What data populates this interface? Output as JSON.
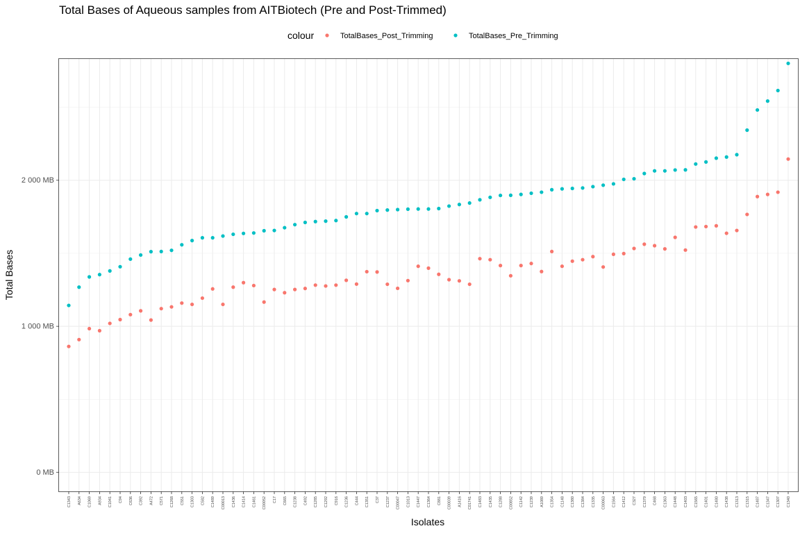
{
  "chart_data": {
    "type": "scatter",
    "title": "Total Bases of Aqueous samples from AITBiotech (Pre and Post-Trimmed)",
    "xlabel": "Isolates",
    "ylabel": "Total Bases",
    "ylim": [
      -130,
      2830
    ],
    "y_ticks": [
      0,
      1000,
      2000
    ],
    "y_tick_labels": [
      "0 MB",
      "1 000 MB",
      "2 000 MB"
    ],
    "grid": true,
    "legend": {
      "title": "colour",
      "position": "top"
    },
    "colors": {
      "post": "#F8766D",
      "pre": "#00BFC4"
    },
    "categories": [
      "C1343",
      "A634",
      "C1069",
      "A934",
      "C1041",
      "C94",
      "C636",
      "C392",
      "A472",
      "C571",
      "C1268",
      "C551",
      "C1303",
      "C582",
      "C1489",
      "C00013",
      "C1436",
      "C1414",
      "C1461",
      "C00052",
      "C17",
      "C665",
      "C1238",
      "C492",
      "C1285",
      "C1292",
      "C916",
      "C1236",
      "C444",
      "C1351",
      "C37",
      "C1237",
      "C00047",
      "C1013",
      "C1447",
      "C1364",
      "C881",
      "C00039",
      "A1416",
      "C01741",
      "C1483",
      "C1435",
      "C1288",
      "C00852",
      "C1142",
      "C1239",
      "A1089",
      "C1354",
      "C1148",
      "C1380",
      "C1384",
      "C1335",
      "C00063",
      "C1564",
      "C1412",
      "C327",
      "C1379",
      "C468",
      "C1363",
      "C1448",
      "C1403",
      "C1565",
      "C1401",
      "C1480",
      "C1438",
      "C1313",
      "C1315",
      "C1487",
      "C1347",
      "C1307",
      "C1340"
    ],
    "series": [
      {
        "name": "TotalBases_Post_Trimming",
        "values": [
          862,
          909,
          984,
          970,
          1020,
          1046,
          1080,
          1106,
          1043,
          1121,
          1133,
          1159,
          1150,
          1193,
          1256,
          1150,
          1268,
          1299,
          1279,
          1166,
          1252,
          1230,
          1252,
          1259,
          1282,
          1276,
          1282,
          1315,
          1289,
          1374,
          1372,
          1288,
          1260,
          1313,
          1411,
          1398,
          1356,
          1319,
          1311,
          1288,
          1463,
          1456,
          1416,
          1346,
          1416,
          1430,
          1375,
          1512,
          1411,
          1446,
          1456,
          1477,
          1406,
          1493,
          1498,
          1533,
          1562,
          1552,
          1530,
          1609,
          1522,
          1680,
          1683,
          1688,
          1637,
          1656,
          1766,
          1888,
          1903,
          1918,
          2145
        ]
      },
      {
        "name": "TotalBases_Pre_Trimming",
        "values": [
          1143,
          1268,
          1338,
          1354,
          1379,
          1408,
          1460,
          1488,
          1511,
          1512,
          1520,
          1558,
          1587,
          1606,
          1606,
          1618,
          1630,
          1636,
          1639,
          1654,
          1656,
          1675,
          1696,
          1711,
          1717,
          1720,
          1724,
          1749,
          1772,
          1772,
          1792,
          1796,
          1799,
          1802,
          1803,
          1803,
          1806,
          1823,
          1834,
          1844,
          1866,
          1883,
          1896,
          1897,
          1903,
          1911,
          1918,
          1935,
          1941,
          1944,
          1947,
          1956,
          1966,
          1975,
          2006,
          2010,
          2046,
          2064,
          2064,
          2070,
          2071,
          2111,
          2125,
          2151,
          2159,
          2175,
          2343,
          2481,
          2542,
          2614,
          2800
        ]
      }
    ]
  }
}
